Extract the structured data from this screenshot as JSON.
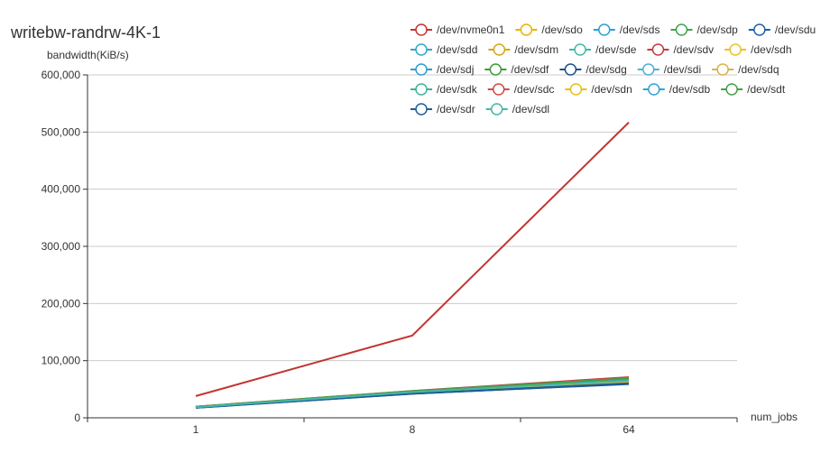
{
  "chart_data": {
    "type": "line",
    "title": "writebw-randrw-4K-1",
    "xlabel": "num_jobs",
    "ylabel": "bandwidth(KiB/s)",
    "categories": [
      "1",
      "8",
      "64"
    ],
    "ylim": [
      0,
      600000
    ],
    "yticks": [
      "0",
      "100,000",
      "200,000",
      "300,000",
      "400,000",
      "500,000",
      "600,000"
    ],
    "grid": true,
    "legend_position": "top-right",
    "series": [
      {
        "name": "/dev/nvme0n1",
        "color": "#c23531",
        "values": [
          38000,
          144000,
          517000
        ]
      },
      {
        "name": "/dev/sdo",
        "color": "#e6b600",
        "values": [
          18500,
          44000,
          64000
        ]
      },
      {
        "name": "/dev/sds",
        "color": "#27a1d6",
        "values": [
          18000,
          43000,
          62000
        ]
      },
      {
        "name": "/dev/sdp",
        "color": "#3fa34d",
        "values": [
          19000,
          45000,
          66000
        ]
      },
      {
        "name": "/dev/sdu",
        "color": "#1f5fa8",
        "values": [
          17500,
          42000,
          60000
        ]
      },
      {
        "name": "/dev/sdd",
        "color": "#2ea8c9",
        "values": [
          18200,
          44500,
          63000
        ]
      },
      {
        "name": "/dev/sdm",
        "color": "#d9a514",
        "values": [
          18800,
          45500,
          65000
        ]
      },
      {
        "name": "/dev/sde",
        "color": "#3dbba4",
        "values": [
          19200,
          46000,
          67000
        ]
      },
      {
        "name": "/dev/sdv",
        "color": "#c9383f",
        "values": [
          19500,
          47000,
          71000
        ]
      },
      {
        "name": "/dev/sdh",
        "color": "#e8c22a",
        "values": [
          18300,
          44200,
          63500
        ]
      },
      {
        "name": "/dev/sdj",
        "color": "#2b9fd0",
        "values": [
          18600,
          44800,
          64500
        ]
      },
      {
        "name": "/dev/sdf",
        "color": "#3f9a3a",
        "values": [
          19100,
          45800,
          68000
        ]
      },
      {
        "name": "/dev/sdg",
        "color": "#1b4f8a",
        "values": [
          17800,
          42500,
          59000
        ]
      },
      {
        "name": "/dev/sdi",
        "color": "#4ab0d6",
        "values": [
          18400,
          44600,
          64000
        ]
      },
      {
        "name": "/dev/sdq",
        "color": "#d8b24a",
        "values": [
          18700,
          45200,
          65500
        ]
      },
      {
        "name": "/dev/sdk",
        "color": "#3bb39a",
        "values": [
          19000,
          45600,
          66500
        ]
      },
      {
        "name": "/dev/sdc",
        "color": "#cf4a4a",
        "values": [
          19300,
          46500,
          70000
        ]
      },
      {
        "name": "/dev/sdn",
        "color": "#e6bf1a",
        "values": [
          18100,
          43800,
          62500
        ]
      },
      {
        "name": "/dev/sdb",
        "color": "#2fa3dc",
        "values": [
          18900,
          45300,
          66000
        ]
      },
      {
        "name": "/dev/sdt",
        "color": "#44a044",
        "values": [
          19400,
          46800,
          69000
        ]
      },
      {
        "name": "/dev/sdr",
        "color": "#215d99",
        "values": [
          17700,
          42300,
          60500
        ]
      },
      {
        "name": "/dev/sdl",
        "color": "#46b7a8",
        "values": [
          18600,
          45000,
          65000
        ]
      }
    ]
  }
}
